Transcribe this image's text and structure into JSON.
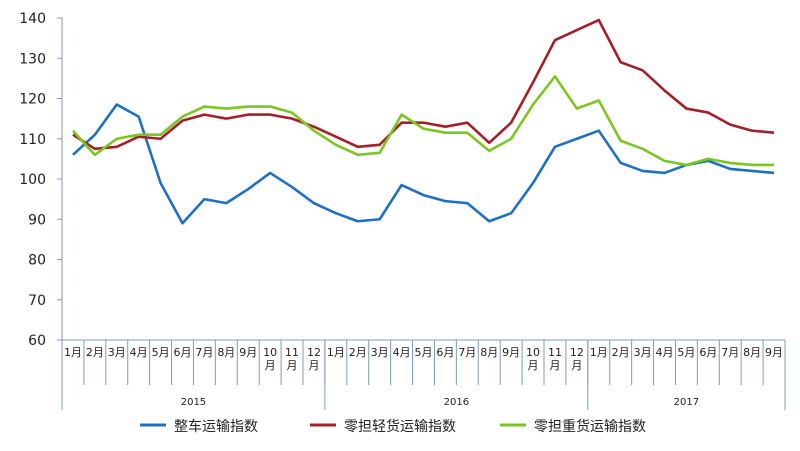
{
  "chart_data": {
    "type": "line",
    "categories": [
      "1月",
      "2月",
      "3月",
      "4月",
      "5月",
      "6月",
      "7月",
      "8月",
      "9月",
      "10月",
      "11月",
      "12月",
      "1月",
      "2月",
      "3月",
      "4月",
      "5月",
      "6月",
      "7月",
      "8月",
      "9月",
      "10月",
      "11月",
      "12月",
      "1月",
      "2月",
      "3月",
      "4月",
      "5月",
      "6月",
      "7月",
      "8月",
      "9月"
    ],
    "year_labels": [
      "2015",
      "2016",
      "2017"
    ],
    "ylim": [
      60,
      140
    ],
    "yticks": [
      60,
      70,
      80,
      90,
      100,
      110,
      120,
      130,
      140
    ],
    "grid": false,
    "series": [
      {
        "name": "整车运输指数",
        "color": "#1f6fc5",
        "values": [
          106,
          111,
          118.5,
          115.5,
          99,
          89,
          95,
          94,
          97.5,
          101.5,
          98,
          94,
          91.5,
          89.5,
          90,
          98.5,
          96,
          94.5,
          94,
          89.5,
          91.5,
          99,
          108,
          110,
          112,
          104,
          102,
          101.5,
          103.5,
          104.5,
          102.5,
          102,
          101.5
        ]
      },
      {
        "name": "零担轻货运输指数",
        "color": "#a3202a",
        "values": [
          111,
          107.5,
          108,
          110.5,
          110,
          114.5,
          116,
          115,
          116,
          116,
          115,
          113,
          110.5,
          108,
          108.5,
          114,
          114,
          113,
          114,
          109,
          114,
          124,
          134.5,
          137,
          139.5,
          129,
          127,
          122,
          117.5,
          116.5,
          113.5,
          112,
          111.5
        ]
      },
      {
        "name": "零担重货运输指数",
        "color": "#7dc520",
        "values": [
          112,
          106,
          110,
          111,
          111,
          115.5,
          118,
          117.5,
          118,
          118,
          116.5,
          112,
          108.5,
          106,
          106.5,
          116,
          112.5,
          111.5,
          111.5,
          107,
          110,
          118.5,
          125.5,
          117.5,
          119.5,
          109.5,
          107.5,
          104.5,
          103.5,
          105,
          104,
          103.5,
          103.5
        ]
      }
    ]
  }
}
